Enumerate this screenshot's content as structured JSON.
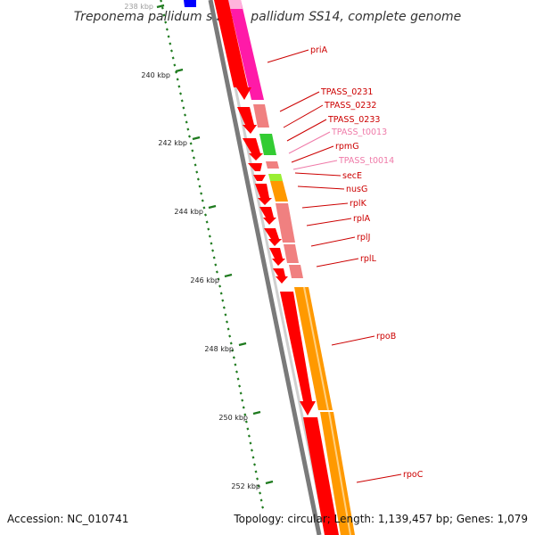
{
  "title": "Treponema pallidum subsp. pallidum SS14, complete genome",
  "footer": {
    "accession": "Accession: NC_010741",
    "topology": "Topology: circular; Length: 1,139,457 bp; Genes: 1,079"
  },
  "ticks": [
    "238 kbp",
    "240 kbp",
    "242 kbp",
    "244 kbp",
    "246 kbp",
    "248 kbp",
    "250 kbp",
    "252 kbp"
  ],
  "colors": {
    "cds": "#ff0000",
    "trna": "#ff8fb8",
    "backbone": "#7a7a7a",
    "tick": "#1e7a1e",
    "label_cds": "#cc0000",
    "label_trna": "#ef7aa8",
    "cog_orange": "#ff9900",
    "cog_magenta": "#ff1aa8",
    "cog_salmon": "#f08080",
    "cog_green": "#33cc33",
    "cog_lime": "#99ee33",
    "cog_blue": "#0000ff"
  },
  "genes": [
    {
      "label": "priA",
      "type": "CDS"
    },
    {
      "label": "TPASS_0231",
      "type": "CDS"
    },
    {
      "label": "TPASS_0232",
      "type": "CDS"
    },
    {
      "label": "TPASS_0233",
      "type": "CDS"
    },
    {
      "label": "TPASS_t0013",
      "type": "tRNA"
    },
    {
      "label": "rpmG",
      "type": "CDS"
    },
    {
      "label": "TPASS_t0014",
      "type": "tRNA"
    },
    {
      "label": "secE",
      "type": "CDS"
    },
    {
      "label": "nusG",
      "type": "CDS"
    },
    {
      "label": "rplK",
      "type": "CDS"
    },
    {
      "label": "rplA",
      "type": "CDS"
    },
    {
      "label": "rplJ",
      "type": "CDS"
    },
    {
      "label": "rplL",
      "type": "CDS"
    },
    {
      "label": "rpoB",
      "type": "CDS"
    },
    {
      "label": "rpoC",
      "type": "CDS"
    }
  ]
}
